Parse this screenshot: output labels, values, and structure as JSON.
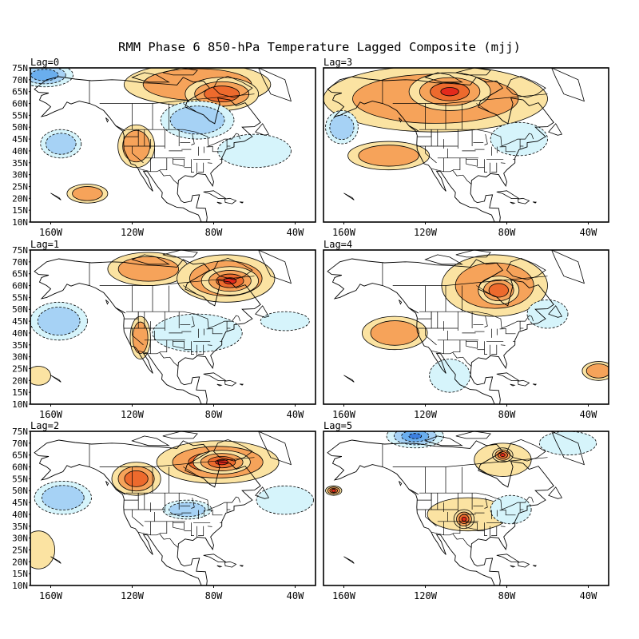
{
  "chart_data": {
    "type": "heatmap",
    "title": "RMM Phase 6 850-hPa Temperature Lagged Composite (mjj)",
    "x_ticks": [
      "160W",
      "120W",
      "80W",
      "40W"
    ],
    "y_ticks": [
      "75N",
      "70N",
      "65N",
      "60N",
      "55N",
      "50N",
      "45N",
      "40N",
      "35N",
      "30N",
      "25N",
      "20N",
      "15N",
      "10N"
    ],
    "lon_range": [
      -170,
      -30
    ],
    "lat_range": [
      10,
      75
    ],
    "colors": {
      "warm1": "#fbe3a2",
      "warm2": "#f6a35a",
      "warm3": "#ed6a2d",
      "warm4": "#e42a1c",
      "cool1": "#d6f4fb",
      "cool2": "#a6d2f5",
      "cool3": "#6aaeee",
      "cool4": "#3c7fe0",
      "land": "#000000",
      "border": "#000000"
    },
    "panels": [
      {
        "label": "Lag=0",
        "features": [
          {
            "lon": -163,
            "lat": 72,
            "rx": 14,
            "ry": 5,
            "sign": -1,
            "level": 3
          },
          {
            "lon": -88,
            "lat": 68,
            "rx": 36,
            "ry": 9,
            "sign": 1,
            "level": 2
          },
          {
            "lon": -76,
            "lat": 64,
            "rx": 18,
            "ry": 7,
            "sign": 1,
            "level": 3
          },
          {
            "lon": -88,
            "lat": 53,
            "rx": 18,
            "ry": 8,
            "sign": -1,
            "level": 2
          },
          {
            "lon": -155,
            "lat": 43,
            "rx": 10,
            "ry": 6,
            "sign": -1,
            "level": 2
          },
          {
            "lon": -118,
            "lat": 42,
            "rx": 9,
            "ry": 9,
            "sign": 1,
            "level": 2
          },
          {
            "lon": -60,
            "lat": 40,
            "rx": 18,
            "ry": 7,
            "sign": -1,
            "level": 1
          },
          {
            "lon": -142,
            "lat": 22,
            "rx": 10,
            "ry": 4,
            "sign": 1,
            "level": 2
          }
        ]
      },
      {
        "label": "Lag=3",
        "features": [
          {
            "lon": -115,
            "lat": 62,
            "rx": 55,
            "ry": 14,
            "sign": 1,
            "level": 2
          },
          {
            "lon": -108,
            "lat": 65,
            "rx": 20,
            "ry": 8,
            "sign": 1,
            "level": 4
          },
          {
            "lon": -138,
            "lat": 38,
            "rx": 20,
            "ry": 6,
            "sign": 1,
            "level": 2
          },
          {
            "lon": -161,
            "lat": 50,
            "rx": 8,
            "ry": 7,
            "sign": -1,
            "level": 2
          },
          {
            "lon": -74,
            "lat": 45,
            "rx": 14,
            "ry": 7,
            "sign": -1,
            "level": 1
          }
        ]
      },
      {
        "label": "Lag=1",
        "features": [
          {
            "lon": -112,
            "lat": 67,
            "rx": 20,
            "ry": 7,
            "sign": 1,
            "level": 2
          },
          {
            "lon": -74,
            "lat": 63,
            "rx": 24,
            "ry": 10,
            "sign": 1,
            "level": 2
          },
          {
            "lon": -72,
            "lat": 62,
            "rx": 14,
            "ry": 6,
            "sign": 1,
            "level": 4
          },
          {
            "lon": -156,
            "lat": 45,
            "rx": 14,
            "ry": 8,
            "sign": -1,
            "level": 2
          },
          {
            "lon": -116,
            "lat": 38,
            "rx": 5,
            "ry": 9,
            "sign": 1,
            "level": 2
          },
          {
            "lon": -88,
            "lat": 40,
            "rx": 22,
            "ry": 8,
            "sign": -1,
            "level": 1
          },
          {
            "lon": -45,
            "lat": 45,
            "rx": 12,
            "ry": 4,
            "sign": -1,
            "level": 1
          },
          {
            "lon": -166,
            "lat": 22,
            "rx": 6,
            "ry": 4,
            "sign": 1,
            "level": 1
          }
        ]
      },
      {
        "label": "Lag=4",
        "features": [
          {
            "lon": -86,
            "lat": 60,
            "rx": 26,
            "ry": 13,
            "sign": 1,
            "level": 2
          },
          {
            "lon": -84,
            "lat": 58,
            "rx": 10,
            "ry": 6,
            "sign": 1,
            "level": 3
          },
          {
            "lon": -135,
            "lat": 40,
            "rx": 16,
            "ry": 7,
            "sign": 1,
            "level": 2
          },
          {
            "lon": -60,
            "lat": 48,
            "rx": 10,
            "ry": 6,
            "sign": -1,
            "level": 1
          },
          {
            "lon": -108,
            "lat": 22,
            "rx": 10,
            "ry": 7,
            "sign": -1,
            "level": 1
          },
          {
            "lon": -35,
            "lat": 24,
            "rx": 8,
            "ry": 4,
            "sign": 1,
            "level": 2
          }
        ]
      },
      {
        "label": "Lag=2",
        "features": [
          {
            "lon": -78,
            "lat": 62,
            "rx": 30,
            "ry": 9,
            "sign": 1,
            "level": 3
          },
          {
            "lon": -76,
            "lat": 62,
            "rx": 14,
            "ry": 5,
            "sign": 1,
            "level": 4
          },
          {
            "lon": -118,
            "lat": 55,
            "rx": 12,
            "ry": 7,
            "sign": 1,
            "level": 3
          },
          {
            "lon": -154,
            "lat": 47,
            "rx": 14,
            "ry": 7,
            "sign": -1,
            "level": 2
          },
          {
            "lon": -93,
            "lat": 42,
            "rx": 12,
            "ry": 4,
            "sign": -1,
            "level": 2
          },
          {
            "lon": -45,
            "lat": 46,
            "rx": 14,
            "ry": 6,
            "sign": -1,
            "level": 1
          },
          {
            "lon": -166,
            "lat": 25,
            "rx": 8,
            "ry": 8,
            "sign": 1,
            "level": 1
          }
        ]
      },
      {
        "label": "Lag=5",
        "features": [
          {
            "lon": -125,
            "lat": 73,
            "rx": 14,
            "ry": 5,
            "sign": -1,
            "level": 4
          },
          {
            "lon": -82,
            "lat": 63,
            "rx": 14,
            "ry": 7,
            "sign": 1,
            "level": 1
          },
          {
            "lon": -82,
            "lat": 65,
            "rx": 5,
            "ry": 3,
            "sign": 1,
            "level": 4
          },
          {
            "lon": -99,
            "lat": 40,
            "rx": 20,
            "ry": 7,
            "sign": 1,
            "level": 1
          },
          {
            "lon": -101,
            "lat": 38,
            "rx": 5,
            "ry": 4,
            "sign": 1,
            "level": 4
          },
          {
            "lon": -165,
            "lat": 50,
            "rx": 4,
            "ry": 2,
            "sign": 1,
            "level": 4
          },
          {
            "lon": -50,
            "lat": 70,
            "rx": 14,
            "ry": 5,
            "sign": -1,
            "level": 1
          },
          {
            "lon": -78,
            "lat": 42,
            "rx": 10,
            "ry": 6,
            "sign": -1,
            "level": 1
          }
        ]
      }
    ]
  }
}
